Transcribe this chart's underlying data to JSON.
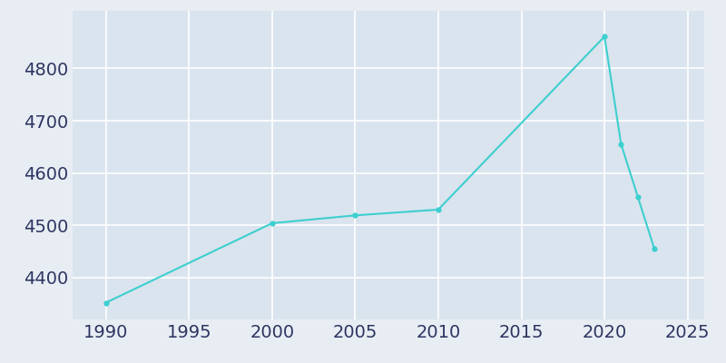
{
  "years": [
    1990,
    2000,
    2005,
    2010,
    2020,
    2021,
    2022,
    2023
  ],
  "population": [
    4352,
    4504,
    4519,
    4530,
    4861,
    4655,
    4555,
    4455
  ],
  "line_color": "#3DCFCF",
  "marker_color": "#3DCFCF",
  "background_color": "#E8EDF4",
  "plot_background_color": "#DAE4EE",
  "grid_color": "#FFFFFF",
  "tick_label_color": "#2D3561",
  "xlim": [
    1988,
    2026
  ],
  "ylim": [
    4320,
    4910
  ],
  "xticks": [
    1990,
    1995,
    2000,
    2005,
    2010,
    2015,
    2020,
    2025
  ],
  "yticks": [
    4400,
    4500,
    4600,
    4700,
    4800
  ],
  "figsize": [
    8.0,
    4.0
  ],
  "dpi": 100,
  "tick_fontsize": 14
}
